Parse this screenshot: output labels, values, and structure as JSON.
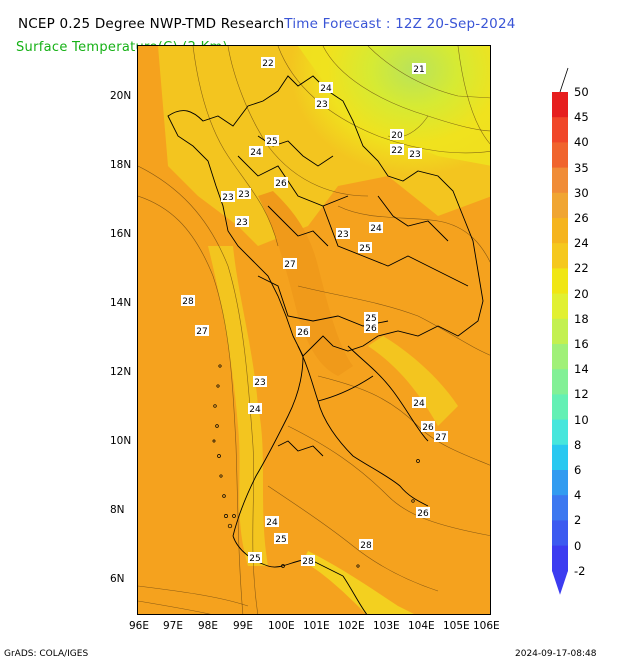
{
  "title": {
    "left": "NCEP 0.25 Degree NWP-TMD Research",
    "right": "Time Forecast : 12Z 20-Sep-2024"
  },
  "subtitle": "Surface Temperature(C) (2 Km)",
  "map": {
    "x_ticks": [
      "96E",
      "97E",
      "98E",
      "99E",
      "100E",
      "101E",
      "102E",
      "103E",
      "104E",
      "105E",
      "106E"
    ],
    "y_ticks": [
      "20N",
      "18N",
      "16N",
      "14N",
      "12N",
      "10N",
      "8N",
      "6N"
    ],
    "contour_labels": [
      "22",
      "24",
      "23",
      "21",
      "23",
      "25",
      "24",
      "20",
      "22",
      "23",
      "26",
      "23",
      "23",
      "24",
      "23",
      "25",
      "27",
      "28",
      "27",
      "26",
      "25",
      "26",
      "23",
      "24",
      "24",
      "26",
      "27",
      "26",
      "24",
      "25",
      "25",
      "28",
      "28"
    ]
  },
  "legend": {
    "levels": [
      "50",
      "45",
      "40",
      "35",
      "30",
      "26",
      "24",
      "22",
      "20",
      "18",
      "16",
      "14",
      "12",
      "10",
      "8",
      "6",
      "4",
      "2",
      "0",
      "-2"
    ],
    "colors": [
      "#e61e1e",
      "#f04628",
      "#f0642d",
      "#f08c37",
      "#f0a532",
      "#f5b41e",
      "#f5c81e",
      "#f0e614",
      "#e1f032",
      "#c3f050",
      "#a0f078",
      "#82f096",
      "#64f0b4",
      "#46e6dc",
      "#28c8f0",
      "#329bf0",
      "#3c78f0",
      "#3c5af0",
      "#3c3cf0"
    ]
  },
  "footer": {
    "left": "GrADS: COLA/IGES",
    "right": "2024-09-17-08:48"
  }
}
